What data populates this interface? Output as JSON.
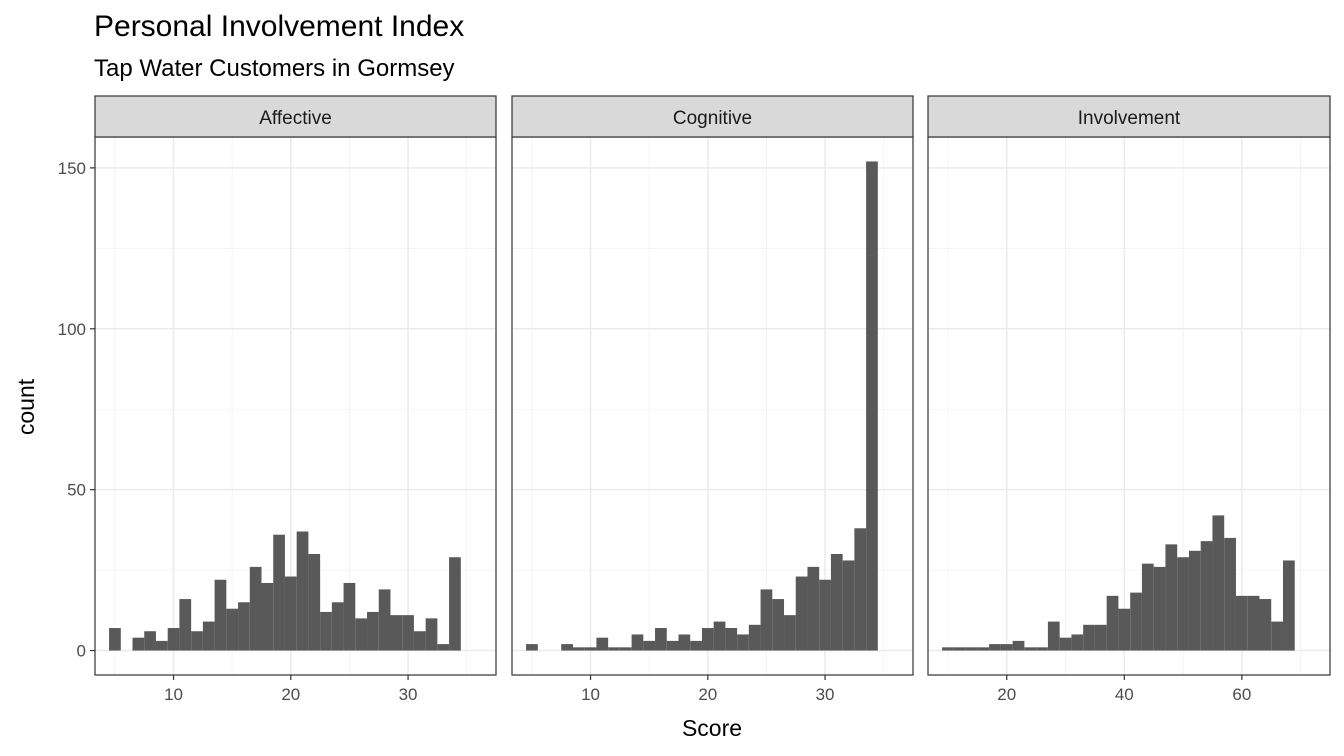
{
  "chart_data": {
    "type": "bar",
    "title": "Personal Involvement Index",
    "subtitle": "Tap Water Customers in Gormsey",
    "xlabel": "Score",
    "ylabel": "count",
    "grid": true,
    "ylim": [
      -7.6,
      159.6
    ],
    "yticks": [
      0,
      50,
      100,
      150
    ],
    "bar_color": "#595959",
    "panels": [
      {
        "name": "Affective",
        "xlim": [
          3.3,
          37.5
        ],
        "xticks": [
          10,
          20,
          30
        ],
        "binwidth": 1,
        "bins": [
          {
            "x": 5,
            "count": 7
          },
          {
            "x": 6,
            "count": 0
          },
          {
            "x": 7,
            "count": 4
          },
          {
            "x": 8,
            "count": 6
          },
          {
            "x": 9,
            "count": 3
          },
          {
            "x": 10,
            "count": 7
          },
          {
            "x": 11,
            "count": 16
          },
          {
            "x": 12,
            "count": 6
          },
          {
            "x": 13,
            "count": 9
          },
          {
            "x": 14,
            "count": 22
          },
          {
            "x": 15,
            "count": 13
          },
          {
            "x": 16,
            "count": 15
          },
          {
            "x": 17,
            "count": 26
          },
          {
            "x": 18,
            "count": 21
          },
          {
            "x": 19,
            "count": 36
          },
          {
            "x": 20,
            "count": 23
          },
          {
            "x": 21,
            "count": 37
          },
          {
            "x": 22,
            "count": 30
          },
          {
            "x": 23,
            "count": 12
          },
          {
            "x": 24,
            "count": 15
          },
          {
            "x": 25,
            "count": 21
          },
          {
            "x": 26,
            "count": 10
          },
          {
            "x": 27,
            "count": 12
          },
          {
            "x": 28,
            "count": 19
          },
          {
            "x": 29,
            "count": 11
          },
          {
            "x": 30,
            "count": 11
          },
          {
            "x": 31,
            "count": 6
          },
          {
            "x": 32,
            "count": 10
          },
          {
            "x": 33,
            "count": 2
          },
          {
            "x": 34,
            "count": 29
          }
        ]
      },
      {
        "name": "Cognitive",
        "xlim": [
          3.3,
          37.5
        ],
        "xticks": [
          10,
          20,
          30
        ],
        "binwidth": 1,
        "bins": [
          {
            "x": 5,
            "count": 2
          },
          {
            "x": 6,
            "count": 0
          },
          {
            "x": 7,
            "count": 0
          },
          {
            "x": 8,
            "count": 2
          },
          {
            "x": 9,
            "count": 1
          },
          {
            "x": 10,
            "count": 1
          },
          {
            "x": 11,
            "count": 4
          },
          {
            "x": 12,
            "count": 1
          },
          {
            "x": 13,
            "count": 1
          },
          {
            "x": 14,
            "count": 5
          },
          {
            "x": 15,
            "count": 3
          },
          {
            "x": 16,
            "count": 7
          },
          {
            "x": 17,
            "count": 3
          },
          {
            "x": 18,
            "count": 5
          },
          {
            "x": 19,
            "count": 3
          },
          {
            "x": 20,
            "count": 7
          },
          {
            "x": 21,
            "count": 9
          },
          {
            "x": 22,
            "count": 7
          },
          {
            "x": 23,
            "count": 5
          },
          {
            "x": 24,
            "count": 8
          },
          {
            "x": 25,
            "count": 19
          },
          {
            "x": 26,
            "count": 16
          },
          {
            "x": 27,
            "count": 11
          },
          {
            "x": 28,
            "count": 23
          },
          {
            "x": 29,
            "count": 26
          },
          {
            "x": 30,
            "count": 22
          },
          {
            "x": 31,
            "count": 30
          },
          {
            "x": 32,
            "count": 28
          },
          {
            "x": 33,
            "count": 38
          },
          {
            "x": 34,
            "count": 152
          }
        ]
      },
      {
        "name": "Involvement",
        "xlim": [
          6.6,
          75.0
        ],
        "xticks": [
          20,
          40,
          60
        ],
        "binwidth": 2,
        "bins": [
          {
            "x": 10,
            "count": 1
          },
          {
            "x": 12,
            "count": 1
          },
          {
            "x": 14,
            "count": 1
          },
          {
            "x": 16,
            "count": 1
          },
          {
            "x": 18,
            "count": 2
          },
          {
            "x": 20,
            "count": 2
          },
          {
            "x": 22,
            "count": 3
          },
          {
            "x": 24,
            "count": 1
          },
          {
            "x": 26,
            "count": 1
          },
          {
            "x": 28,
            "count": 9
          },
          {
            "x": 30,
            "count": 4
          },
          {
            "x": 32,
            "count": 5
          },
          {
            "x": 34,
            "count": 8
          },
          {
            "x": 36,
            "count": 8
          },
          {
            "x": 38,
            "count": 17
          },
          {
            "x": 40,
            "count": 13
          },
          {
            "x": 42,
            "count": 18
          },
          {
            "x": 44,
            "count": 27
          },
          {
            "x": 46,
            "count": 26
          },
          {
            "x": 48,
            "count": 33
          },
          {
            "x": 50,
            "count": 29
          },
          {
            "x": 52,
            "count": 31
          },
          {
            "x": 54,
            "count": 34
          },
          {
            "x": 56,
            "count": 42
          },
          {
            "x": 58,
            "count": 35
          },
          {
            "x": 60,
            "count": 17
          },
          {
            "x": 62,
            "count": 17
          },
          {
            "x": 64,
            "count": 16
          },
          {
            "x": 66,
            "count": 9
          },
          {
            "x": 68,
            "count": 28
          }
        ]
      }
    ]
  }
}
